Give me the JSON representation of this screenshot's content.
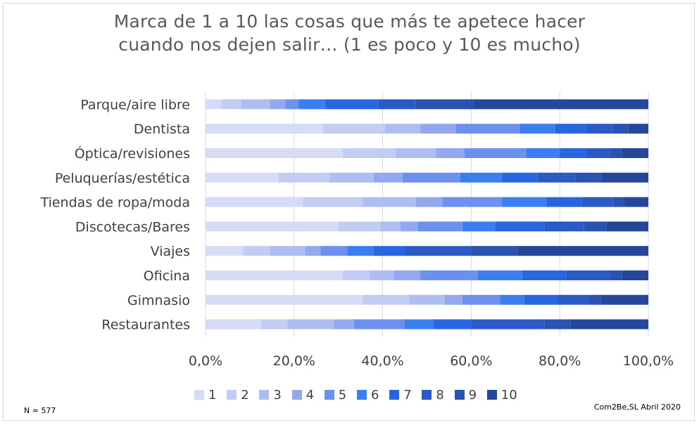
{
  "title_lines": [
    "Marca de 1 a 10 las cosas que más te apetece hacer",
    "cuando nos dejen salir… (1 es poco y 10 es mucho)"
  ],
  "n_note": "N = 577",
  "source_note": "Com2Be,SL Abril 2020",
  "chart_data": {
    "type": "bar",
    "orientation": "horizontal",
    "stacked": "percent",
    "title": "Marca de 1 a 10 las cosas que más te apetece hacer cuando nos dejen salir… (1 es poco y 10 es mucho)",
    "xlim": [
      0,
      100
    ],
    "x_ticks": [
      0,
      20,
      40,
      60,
      80,
      100
    ],
    "x_tick_labels": [
      "0,0%",
      "20,0%",
      "40,0%",
      "60,0%",
      "80,0%",
      "100,0%"
    ],
    "legend_position": "bottom",
    "grid": "vertical",
    "categories": [
      "Parque/aire libre",
      "Dentista",
      "Óptica/revisiones",
      "Peluquerías/estética",
      "Tiendas de ropa/moda",
      "Discotecas/Bares",
      "Viajes",
      "Oficina",
      "Gimnasio",
      "Restaurantes"
    ],
    "series": [
      {
        "name": "1",
        "color": "#d6dcf6",
        "values": [
          3.5,
          26.5,
          31.0,
          16.5,
          22.0,
          30.0,
          8.5,
          31.0,
          35.5,
          12.5
        ]
      },
      {
        "name": "2",
        "color": "#c3cdf4",
        "values": [
          4.5,
          14.0,
          12.0,
          11.5,
          13.5,
          9.5,
          6.0,
          6.0,
          10.5,
          6.0
        ]
      },
      {
        "name": "3",
        "color": "#aebdf2",
        "values": [
          6.5,
          8.0,
          9.0,
          10.0,
          12.0,
          4.5,
          8.0,
          5.5,
          8.0,
          10.5
        ]
      },
      {
        "name": "4",
        "color": "#93a8ef",
        "values": [
          3.5,
          8.0,
          6.5,
          6.5,
          6.0,
          4.0,
          3.5,
          6.0,
          4.0,
          4.5
        ]
      },
      {
        "name": "5",
        "color": "#6c90ee",
        "values": [
          3.0,
          14.5,
          14.0,
          13.0,
          13.5,
          10.0,
          6.0,
          13.0,
          8.5,
          11.5
        ]
      },
      {
        "name": "6",
        "color": "#3a7ef0",
        "values": [
          6.0,
          8.0,
          7.5,
          9.5,
          10.0,
          7.5,
          6.0,
          10.0,
          5.5,
          6.5
        ]
      },
      {
        "name": "7",
        "color": "#2866df",
        "values": [
          12.0,
          7.0,
          6.0,
          8.0,
          8.0,
          11.0,
          7.0,
          10.0,
          7.5,
          8.5
        ]
      },
      {
        "name": "8",
        "color": "#2a5ac6",
        "values": [
          8.5,
          6.0,
          5.5,
          8.5,
          7.0,
          9.0,
          15.0,
          10.0,
          7.0,
          16.5
        ]
      },
      {
        "name": "9",
        "color": "#2a52b0",
        "values": [
          13.0,
          3.5,
          2.5,
          6.0,
          2.5,
          5.0,
          10.5,
          2.5,
          3.0,
          6.0
        ]
      },
      {
        "name": "10",
        "color": "#24479a",
        "values": [
          39.5,
          4.5,
          6.0,
          10.5,
          5.5,
          9.5,
          29.5,
          6.0,
          10.5,
          17.5
        ]
      }
    ]
  }
}
